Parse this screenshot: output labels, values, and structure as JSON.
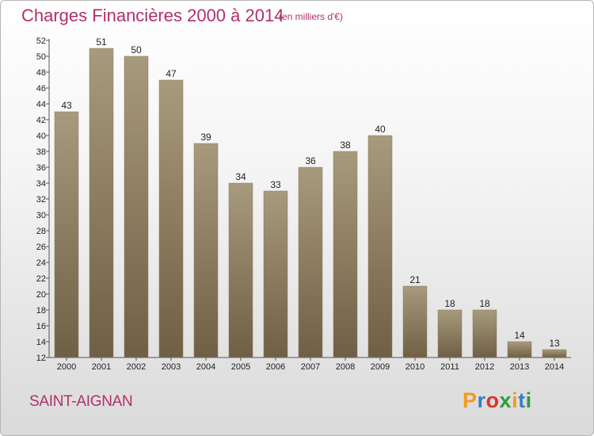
{
  "header": {
    "title": "Charges Financières 2000 à 2014",
    "unit": "(en milliers d'€)"
  },
  "footer": {
    "place": "SAINT-AIGNAN",
    "logo": "Proxiti"
  },
  "colors": {
    "title": "#b0306a",
    "bar_top": "#a89a7c",
    "bar_bottom": "#6f5f45",
    "logo_letters": [
      "#f39a1e",
      "#3a7fc1",
      "#e0312b",
      "#2f9b3a",
      "#f39a1e",
      "#3a7fc1",
      "#2f9b3a"
    ]
  },
  "chart_data": {
    "type": "bar",
    "title": "Charges Financières 2000 à 2014",
    "subtitle": "(en milliers d'€)",
    "categories": [
      "2000",
      "2001",
      "2002",
      "2003",
      "2004",
      "2005",
      "2006",
      "2007",
      "2008",
      "2009",
      "2010",
      "2011",
      "2012",
      "2013",
      "2014"
    ],
    "values": [
      43,
      51,
      50,
      47,
      39,
      34,
      33,
      36,
      38,
      40,
      21,
      18,
      18,
      14,
      13
    ],
    "ylim": [
      12,
      52
    ],
    "yticks": [
      12,
      14,
      16,
      18,
      20,
      22,
      24,
      26,
      28,
      30,
      32,
      34,
      36,
      38,
      40,
      42,
      44,
      46,
      48,
      50,
      52
    ],
    "grid": false,
    "legend": "none",
    "data_labels": true
  }
}
